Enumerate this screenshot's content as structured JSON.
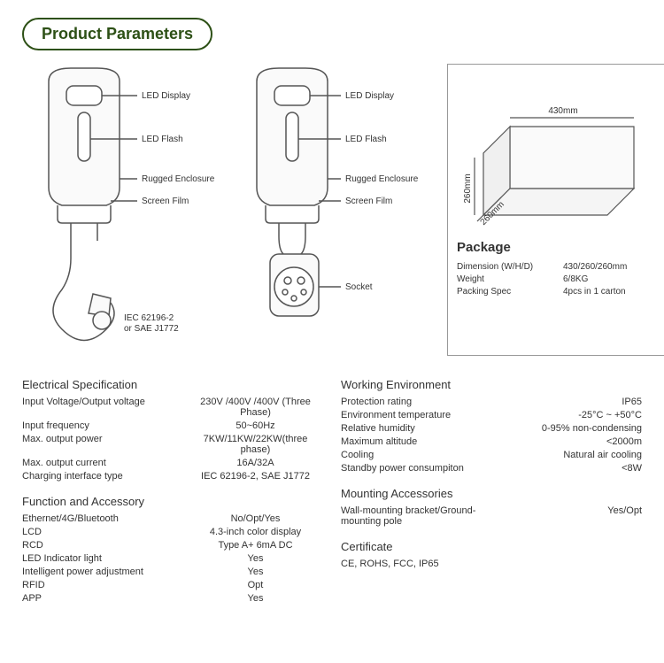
{
  "title": "Product Parameters",
  "colors": {
    "accent": "#2d5016",
    "border": "#999",
    "text": "#333",
    "bg": "#fff"
  },
  "diagrams": {
    "callouts": {
      "led_display": "LED Display",
      "led_flash": "LED Flash",
      "rugged_enclosure": "Rugged Enclosure",
      "screen_film": "Screen Film",
      "iec_label": "IEC 62196-2\nor SAE J1772",
      "socket": "Socket"
    }
  },
  "package": {
    "title": "Package",
    "box_dims": {
      "w": "430mm",
      "h": "260mm",
      "d": "260mm"
    },
    "rows": [
      {
        "k": "Dimension (W/H/D)",
        "v": "430/260/260mm"
      },
      {
        "k": "Weight",
        "v": "6/8KG"
      },
      {
        "k": "Packing Spec",
        "v": "4pcs in 1 carton"
      }
    ]
  },
  "spec_left": [
    {
      "title": "Electrical Specification",
      "rows": [
        {
          "k": "Input Voltage/Output voltage",
          "v": "230V /400V /400V (Three Phase)"
        },
        {
          "k": "Input frequency",
          "v": "50~60Hz"
        },
        {
          "k": "Max. output power",
          "v": "7KW/11KW/22KW(three phase)"
        },
        {
          "k": "Max. output current",
          "v": "16A/32A"
        },
        {
          "k": "Charging interface type",
          "v": "IEC 62196-2, SAE J1772"
        }
      ]
    },
    {
      "title": "Function and Accessory",
      "rows": [
        {
          "k": "Ethernet/4G/Bluetooth",
          "v": "No/Opt/Yes"
        },
        {
          "k": "LCD",
          "v": "4.3-inch color display"
        },
        {
          "k": "RCD",
          "v": "Type A+ 6mA DC"
        },
        {
          "k": "LED Indicator light",
          "v": "Yes"
        },
        {
          "k": "Intelligent power adjustment",
          "v": "Yes"
        },
        {
          "k": "RFID",
          "v": "Opt"
        },
        {
          "k": "APP",
          "v": "Yes"
        }
      ]
    }
  ],
  "spec_right": [
    {
      "title": "Working Environment",
      "rows": [
        {
          "k": "Protection rating",
          "v": "IP65"
        },
        {
          "k": "Environment temperature",
          "v": "-25°C ~ +50°C"
        },
        {
          "k": "Relative humidity",
          "v": "0-95% non-condensing"
        },
        {
          "k": "Maximum altitude",
          "v": "<2000m"
        },
        {
          "k": "Cooling",
          "v": "Natural air cooling"
        },
        {
          "k": "Standby power consumpiton",
          "v": "<8W"
        }
      ]
    },
    {
      "title": "Mounting Accessories",
      "rows": [
        {
          "k": "Wall-mounting bracket/Ground-mounting pole",
          "v": "Yes/Opt"
        }
      ]
    },
    {
      "title": "Certificate",
      "rows": [
        {
          "k": "CE, ROHS, FCC, IP65",
          "v": ""
        }
      ]
    }
  ]
}
